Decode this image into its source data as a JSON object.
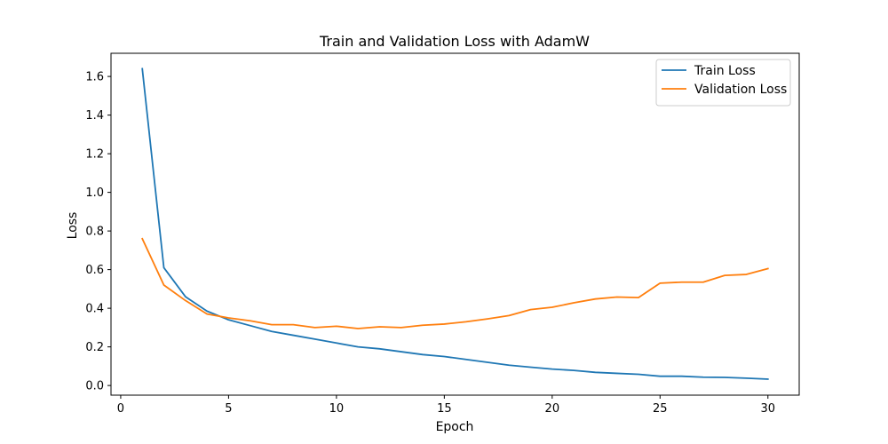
{
  "chart_data": {
    "type": "line",
    "title": "Train and Validation Loss with AdamW",
    "xlabel": "Epoch",
    "ylabel": "Loss",
    "xlim": [
      -0.45,
      31.45
    ],
    "ylim": [
      -0.05,
      1.72
    ],
    "x_ticks": [
      0,
      5,
      10,
      15,
      20,
      25,
      30
    ],
    "x_tick_labels": [
      "0",
      "5",
      "10",
      "15",
      "20",
      "25",
      "30"
    ],
    "y_ticks": [
      0.0,
      0.2,
      0.4,
      0.6,
      0.8,
      1.0,
      1.2,
      1.4,
      1.6
    ],
    "y_tick_labels": [
      "0.0",
      "0.2",
      "0.4",
      "0.6",
      "0.8",
      "1.0",
      "1.2",
      "1.4",
      "1.6"
    ],
    "grid": false,
    "legend_position": "upper right",
    "x": [
      1,
      2,
      3,
      4,
      5,
      6,
      7,
      8,
      9,
      10,
      11,
      12,
      13,
      14,
      15,
      16,
      17,
      18,
      19,
      20,
      21,
      22,
      23,
      24,
      25,
      26,
      27,
      28,
      29,
      30
    ],
    "series": [
      {
        "name": "Train Loss",
        "color": "#1f77b4",
        "values": [
          1.64,
          0.61,
          0.46,
          0.385,
          0.34,
          0.31,
          0.28,
          0.26,
          0.24,
          0.22,
          0.2,
          0.19,
          0.175,
          0.16,
          0.15,
          0.135,
          0.12,
          0.105,
          0.095,
          0.085,
          0.078,
          0.068,
          0.063,
          0.058,
          0.048,
          0.048,
          0.043,
          0.042,
          0.038,
          0.033
        ]
      },
      {
        "name": "Validation Loss",
        "color": "#ff7f0e",
        "values": [
          0.76,
          0.52,
          0.44,
          0.37,
          0.35,
          0.335,
          0.315,
          0.315,
          0.3,
          0.307,
          0.295,
          0.304,
          0.3,
          0.312,
          0.318,
          0.33,
          0.345,
          0.362,
          0.393,
          0.405,
          0.428,
          0.448,
          0.458,
          0.455,
          0.53,
          0.535,
          0.535,
          0.57,
          0.575,
          0.605
        ]
      }
    ]
  }
}
